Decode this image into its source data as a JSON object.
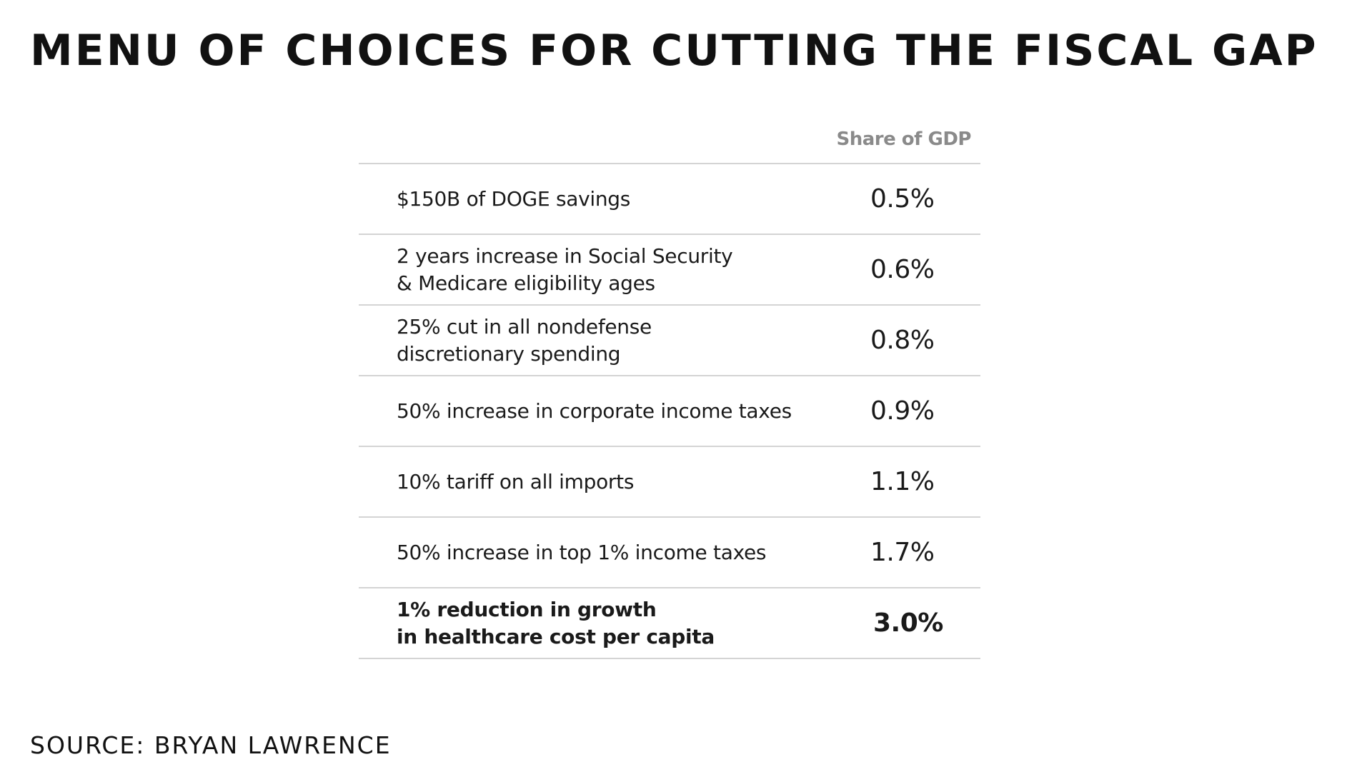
{
  "title": "MENU OF CHOICES FOR CUTTING THE FISCAL GAP",
  "source": "SOURCE: BRYAN LAWRENCE",
  "chart_data": {
    "type": "table",
    "title": "MENU OF CHOICES FOR CUTTING THE FISCAL GAP",
    "columns": [
      "",
      "Share of GDP"
    ],
    "rows": [
      {
        "label": "$150B of DOGE savings",
        "value": "0.5%",
        "highlight": false
      },
      {
        "label": "2 years increase in Social Security\n& Medicare eligibility ages",
        "value": "0.6%",
        "highlight": false
      },
      {
        "label": "25% cut in all nondefense\ndiscretionary spending",
        "value": "0.8%",
        "highlight": false
      },
      {
        "label": "50% increase in corporate income taxes",
        "value": "0.9%",
        "highlight": false
      },
      {
        "label": "10% tariff on all imports",
        "value": "1.1%",
        "highlight": false
      },
      {
        "label": "50% increase in top 1% income taxes",
        "value": "1.7%",
        "highlight": false
      },
      {
        "label": "1% reduction in growth\nin healthcare cost per capita",
        "value": "3.0%",
        "highlight": true
      }
    ],
    "source": "SOURCE: BRYAN LAWRENCE"
  }
}
